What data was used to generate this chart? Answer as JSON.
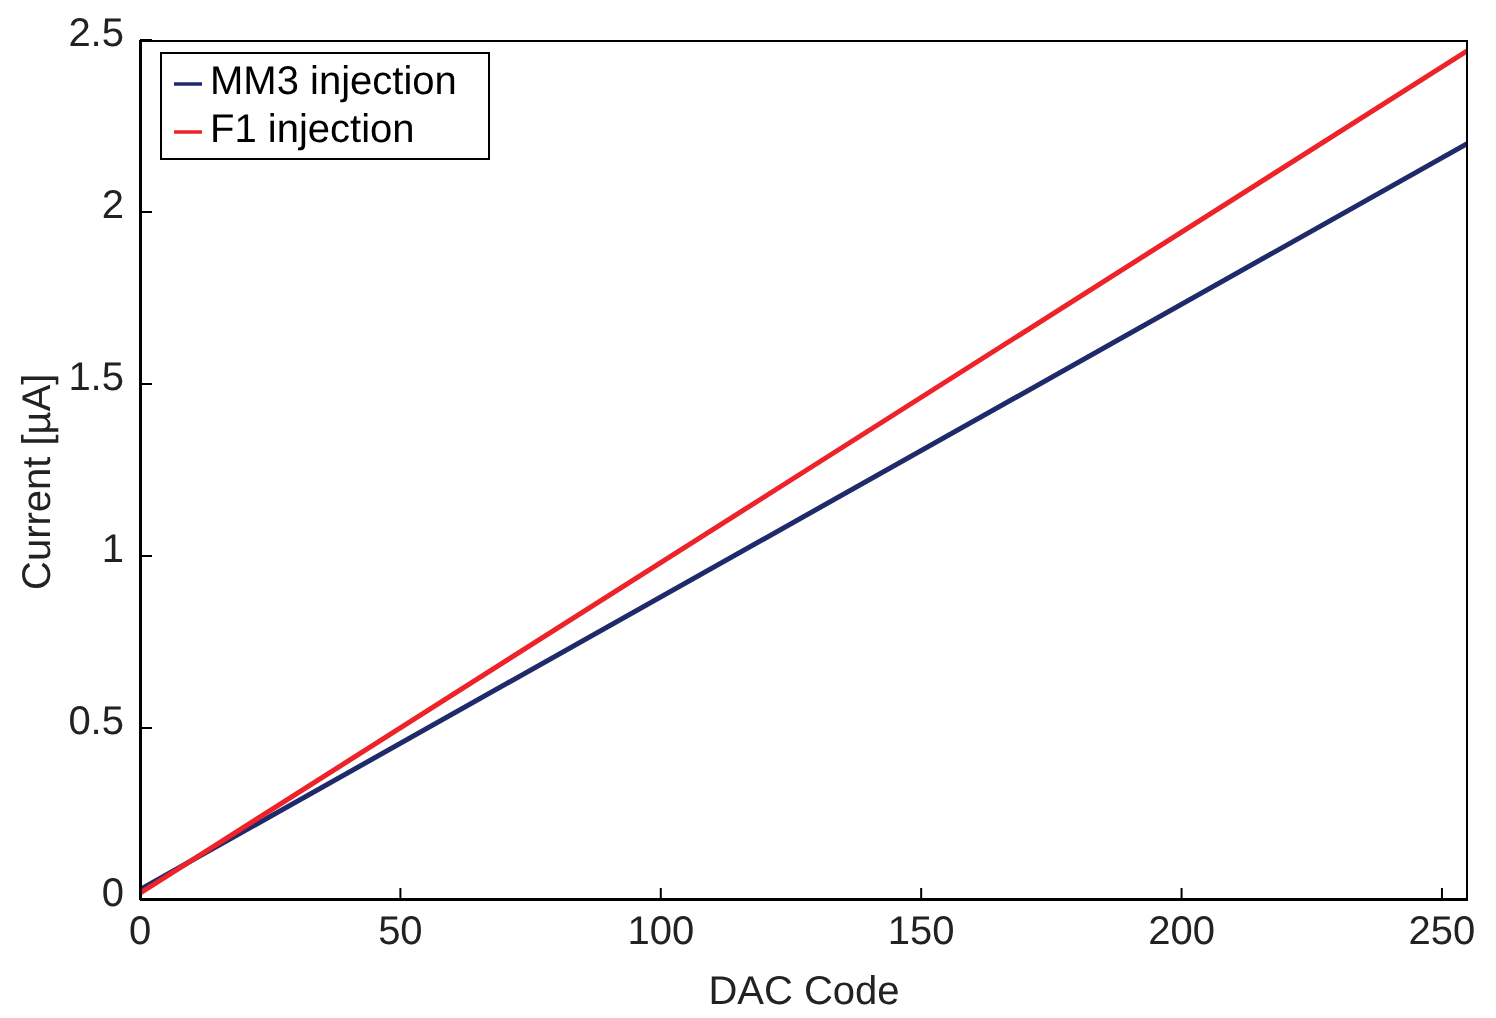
{
  "chart_data": {
    "type": "line",
    "xlabel": "DAC Code",
    "ylabel": "Current [µA]",
    "x": [
      0,
      255
    ],
    "series": [
      {
        "name": "MM3 injection",
        "color": "#1f2a6b",
        "values": [
          0.03,
          2.2
        ]
      },
      {
        "name": "F1 injection",
        "color": "#ee2229",
        "values": [
          0.02,
          2.47
        ]
      }
    ],
    "xlim": [
      0,
      255
    ],
    "xticks": [
      0,
      50,
      100,
      150,
      200,
      250
    ],
    "ylim": [
      0,
      2.5
    ],
    "yticks": [
      0,
      0.5,
      1,
      1.5,
      2,
      2.5
    ],
    "grid": false,
    "legend": "top left",
    "marker": "none",
    "line_style": "solid"
  }
}
